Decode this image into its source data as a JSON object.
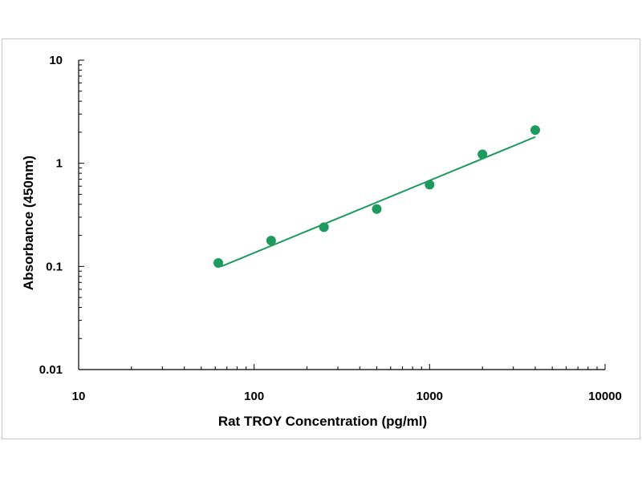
{
  "chart_data": {
    "type": "scatter",
    "title": "",
    "xlabel": "Rat TROY  Concentration (pg/ml)",
    "ylabel": "Absorbance (450nm)",
    "xscale": "log",
    "yscale": "log",
    "xlim": [
      10,
      10000
    ],
    "ylim": [
      0.01,
      10
    ],
    "xticks": [
      "10",
      "100",
      "1000",
      "10000"
    ],
    "yticks": [
      "0.01",
      "0.1",
      "1",
      "10"
    ],
    "grid": false,
    "legend": "none",
    "series": [
      {
        "x": [
          62.5,
          125,
          250,
          500,
          1000,
          2000,
          4000
        ],
        "y": [
          0.108,
          0.178,
          0.24,
          0.36,
          0.62,
          1.22,
          2.1
        ],
        "color": "#1e9a5e"
      }
    ],
    "fit_line": {
      "x": [
        65,
        4000
      ],
      "y": [
        0.1,
        1.8
      ],
      "color": "#1e9a5e"
    }
  }
}
